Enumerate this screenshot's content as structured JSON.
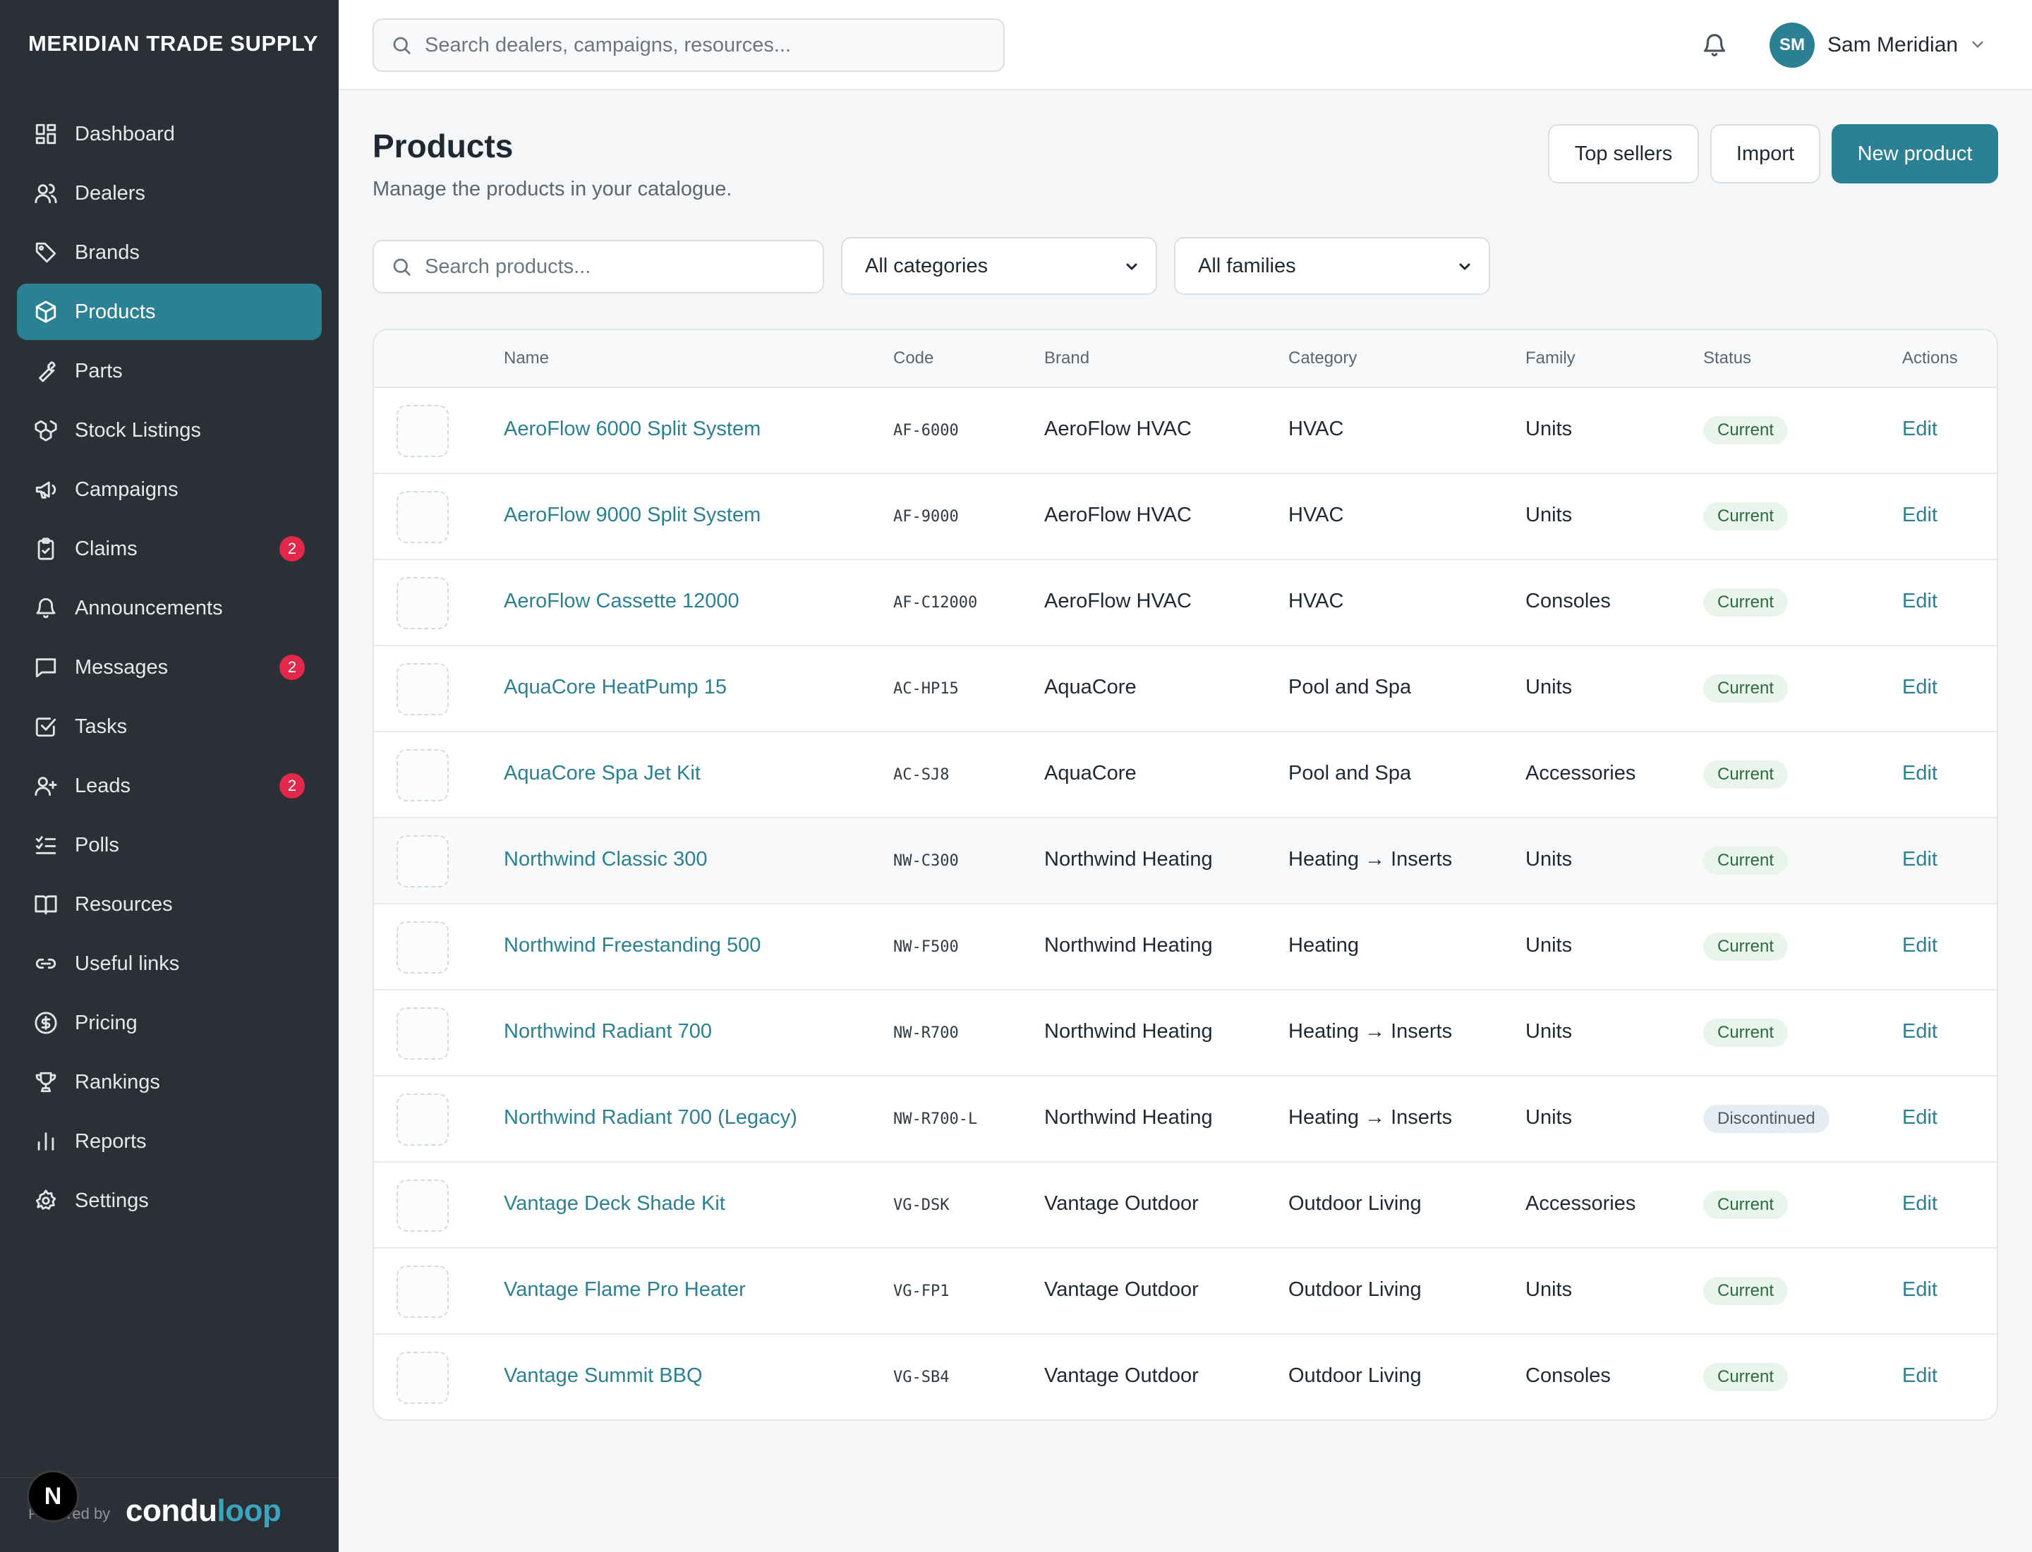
{
  "sidebar": {
    "brand": "MERIDIAN TRADE SUPPLY",
    "items": [
      {
        "label": "Dashboard",
        "icon": "dashboard-icon",
        "active": false,
        "badge": ""
      },
      {
        "label": "Dealers",
        "icon": "users-icon",
        "active": false,
        "badge": ""
      },
      {
        "label": "Brands",
        "icon": "tag-icon",
        "active": false,
        "badge": ""
      },
      {
        "label": "Products",
        "icon": "box-icon",
        "active": true,
        "badge": ""
      },
      {
        "label": "Parts",
        "icon": "wrench-icon",
        "active": false,
        "badge": ""
      },
      {
        "label": "Stock Listings",
        "icon": "boxes-icon",
        "active": false,
        "badge": ""
      },
      {
        "label": "Campaigns",
        "icon": "megaphone-icon",
        "active": false,
        "badge": ""
      },
      {
        "label": "Claims",
        "icon": "clipboard-icon",
        "active": false,
        "badge": "2"
      },
      {
        "label": "Announcements",
        "icon": "bell-icon",
        "active": false,
        "badge": ""
      },
      {
        "label": "Messages",
        "icon": "message-icon",
        "active": false,
        "badge": "2"
      },
      {
        "label": "Tasks",
        "icon": "checkbox-icon",
        "active": false,
        "badge": ""
      },
      {
        "label": "Leads",
        "icon": "user-plus-icon",
        "active": false,
        "badge": "2"
      },
      {
        "label": "Polls",
        "icon": "list-checks-icon",
        "active": false,
        "badge": ""
      },
      {
        "label": "Resources",
        "icon": "book-icon",
        "active": false,
        "badge": ""
      },
      {
        "label": "Useful links",
        "icon": "link-icon",
        "active": false,
        "badge": ""
      },
      {
        "label": "Pricing",
        "icon": "dollar-circle-icon",
        "active": false,
        "badge": ""
      },
      {
        "label": "Rankings",
        "icon": "trophy-icon",
        "active": false,
        "badge": ""
      },
      {
        "label": "Reports",
        "icon": "bar-chart-icon",
        "active": false,
        "badge": ""
      },
      {
        "label": "Settings",
        "icon": "gear-icon",
        "active": false,
        "badge": ""
      }
    ],
    "footer": {
      "powered_by": "Powered by",
      "logo_a": "condu",
      "logo_b": "loop",
      "n_badge": "N"
    }
  },
  "topbar": {
    "search_placeholder": "Search dealers, campaigns, resources...",
    "user_initials": "SM",
    "user_name": "Sam Meridian"
  },
  "header": {
    "title": "Products",
    "subtitle": "Manage the products in your catalogue.",
    "top_sellers_label": "Top sellers",
    "import_label": "Import",
    "new_product_label": "New product"
  },
  "filters": {
    "search_placeholder": "Search products...",
    "category_selected": "All categories",
    "family_selected": "All families"
  },
  "table": {
    "columns": {
      "name": "Name",
      "code": "Code",
      "brand": "Brand",
      "category": "Category",
      "family": "Family",
      "status": "Status",
      "actions": "Actions"
    },
    "edit_label": "Edit",
    "rows": [
      {
        "name": "AeroFlow 6000 Split System",
        "code": "AF-6000",
        "brand": "AeroFlow HVAC",
        "category": "HVAC",
        "family": "Units",
        "status": "Current"
      },
      {
        "name": "AeroFlow 9000 Split System",
        "code": "AF-9000",
        "brand": "AeroFlow HVAC",
        "category": "HVAC",
        "family": "Units",
        "status": "Current"
      },
      {
        "name": "AeroFlow Cassette 12000",
        "code": "AF-C12000",
        "brand": "AeroFlow HVAC",
        "category": "HVAC",
        "family": "Consoles",
        "status": "Current"
      },
      {
        "name": "AquaCore HeatPump 15",
        "code": "AC-HP15",
        "brand": "AquaCore",
        "category": "Pool and Spa",
        "family": "Units",
        "status": "Current"
      },
      {
        "name": "AquaCore Spa Jet Kit",
        "code": "AC-SJ8",
        "brand": "AquaCore",
        "category": "Pool and Spa",
        "family": "Accessories",
        "status": "Current"
      },
      {
        "name": "Northwind Classic 300",
        "code": "NW-C300",
        "brand": "Northwind Heating",
        "category": "Heating → Inserts",
        "family": "Units",
        "status": "Current"
      },
      {
        "name": "Northwind Freestanding 500",
        "code": "NW-F500",
        "brand": "Northwind Heating",
        "category": "Heating",
        "family": "Units",
        "status": "Current"
      },
      {
        "name": "Northwind Radiant 700",
        "code": "NW-R700",
        "brand": "Northwind Heating",
        "category": "Heating → Inserts",
        "family": "Units",
        "status": "Current"
      },
      {
        "name": "Northwind Radiant 700 (Legacy)",
        "code": "NW-R700-L",
        "brand": "Northwind Heating",
        "category": "Heating → Inserts",
        "family": "Units",
        "status": "Discontinued"
      },
      {
        "name": "Vantage Deck Shade Kit",
        "code": "VG-DSK",
        "brand": "Vantage Outdoor",
        "category": "Outdoor Living",
        "family": "Accessories",
        "status": "Current"
      },
      {
        "name": "Vantage Flame Pro Heater",
        "code": "VG-FP1",
        "brand": "Vantage Outdoor",
        "category": "Outdoor Living",
        "family": "Units",
        "status": "Current"
      },
      {
        "name": "Vantage Summit BBQ",
        "code": "VG-SB4",
        "brand": "Vantage Outdoor",
        "category": "Outdoor Living",
        "family": "Consoles",
        "status": "Current"
      }
    ]
  },
  "colors": {
    "accent": "#2c8094",
    "sidebar_bg": "#2a3035",
    "badge": "#e3284a",
    "status_current_bg": "#e9f5ec",
    "status_current_text": "#2b6b3b"
  }
}
